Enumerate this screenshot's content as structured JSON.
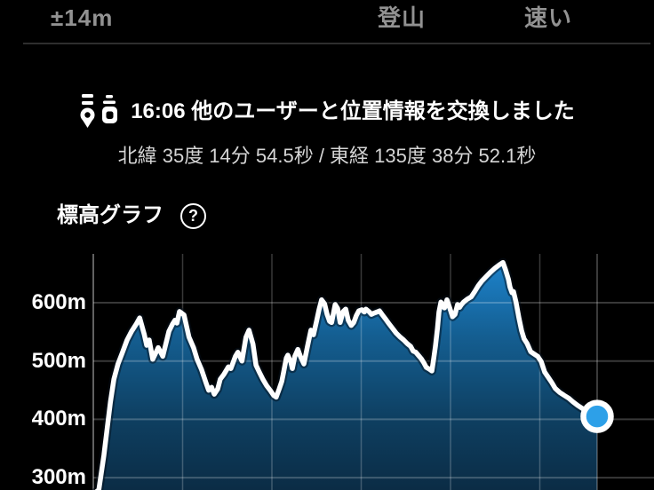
{
  "topbar": {
    "accuracy": "±14m",
    "mode": "登山",
    "pace": "速い"
  },
  "notification": {
    "message": "16:06 他のユーザーと位置情報を交換しました",
    "coordinates": "北緯 35度 14分 54.5秒 / 東経 135度 38分 52.1秒"
  },
  "section": {
    "title": "標高グラフ",
    "help_glyph": "?"
  },
  "chart_data": {
    "type": "area",
    "title": "標高グラフ",
    "ylabel": "標高",
    "unit": "m",
    "grid": true,
    "legend": "none",
    "y_ticks": [
      {
        "label": "600m",
        "value": 600
      },
      {
        "label": "500m",
        "value": 500
      },
      {
        "label": "400m",
        "value": 400
      },
      {
        "label": "300m",
        "value": 300
      }
    ],
    "visible_range_m": [
      272,
      669
    ],
    "current_elevation_m": 405,
    "colors": {
      "line": "#ffffff",
      "fill_top": "#1e87d2",
      "fill_mid": "#145e91",
      "fill_low": "#0e3f61",
      "fill_bottom": "#0b2c45",
      "dot": "#2da0e8",
      "grid": "rgba(255,255,255,0.22)",
      "axis": "rgba(255,255,255,0.38)"
    },
    "points": [
      [
        0,
        272
      ],
      [
        0.011,
        279
      ],
      [
        0.021,
        338
      ],
      [
        0.028,
        388
      ],
      [
        0.034,
        430
      ],
      [
        0.041,
        469
      ],
      [
        0.049,
        495
      ],
      [
        0.058,
        515
      ],
      [
        0.067,
        536
      ],
      [
        0.076,
        551
      ],
      [
        0.085,
        563
      ],
      [
        0.092,
        574
      ],
      [
        0.101,
        546
      ],
      [
        0.106,
        527
      ],
      [
        0.111,
        536
      ],
      [
        0.118,
        503
      ],
      [
        0.123,
        512
      ],
      [
        0.129,
        523
      ],
      [
        0.138,
        508
      ],
      [
        0.15,
        551
      ],
      [
        0.157,
        563
      ],
      [
        0.162,
        570
      ],
      [
        0.166,
        565
      ],
      [
        0.171,
        585
      ],
      [
        0.18,
        579
      ],
      [
        0.19,
        541
      ],
      [
        0.199,
        523
      ],
      [
        0.206,
        503
      ],
      [
        0.215,
        485
      ],
      [
        0.224,
        462
      ],
      [
        0.229,
        450
      ],
      [
        0.235,
        455
      ],
      [
        0.24,
        443
      ],
      [
        0.247,
        452
      ],
      [
        0.252,
        469
      ],
      [
        0.259,
        477
      ],
      [
        0.268,
        490
      ],
      [
        0.273,
        487
      ],
      [
        0.282,
        508
      ],
      [
        0.287,
        515
      ],
      [
        0.295,
        500
      ],
      [
        0.303,
        541
      ],
      [
        0.309,
        553
      ],
      [
        0.317,
        529
      ],
      [
        0.323,
        493
      ],
      [
        0.33,
        480
      ],
      [
        0.337,
        468
      ],
      [
        0.344,
        458
      ],
      [
        0.351,
        450
      ],
      [
        0.358,
        441
      ],
      [
        0.363,
        438
      ],
      [
        0.369,
        452
      ],
      [
        0.374,
        465
      ],
      [
        0.377,
        478
      ],
      [
        0.383,
        505
      ],
      [
        0.386,
        510
      ],
      [
        0.392,
        498
      ],
      [
        0.395,
        487
      ],
      [
        0.4,
        508
      ],
      [
        0.406,
        520
      ],
      [
        0.411,
        508
      ],
      [
        0.418,
        495
      ],
      [
        0.425,
        525
      ],
      [
        0.432,
        553
      ],
      [
        0.437,
        545
      ],
      [
        0.443,
        568
      ],
      [
        0.448,
        588
      ],
      [
        0.453,
        605
      ],
      [
        0.459,
        598
      ],
      [
        0.464,
        580
      ],
      [
        0.469,
        568
      ],
      [
        0.473,
        566
      ],
      [
        0.48,
        597
      ],
      [
        0.485,
        590
      ],
      [
        0.49,
        566
      ],
      [
        0.496,
        585
      ],
      [
        0.501,
        589
      ],
      [
        0.506,
        570
      ],
      [
        0.512,
        561
      ],
      [
        0.517,
        566
      ],
      [
        0.522,
        578
      ],
      [
        0.527,
        586
      ],
      [
        0.533,
        588
      ],
      [
        0.538,
        584
      ],
      [
        0.541,
        589
      ],
      [
        0.547,
        585
      ],
      [
        0.552,
        580
      ],
      [
        0.557,
        582
      ],
      [
        0.563,
        584
      ],
      [
        0.568,
        586
      ],
      [
        0.573,
        580
      ],
      [
        0.58,
        572
      ],
      [
        0.587,
        564
      ],
      [
        0.594,
        556
      ],
      [
        0.601,
        548
      ],
      [
        0.608,
        542
      ],
      [
        0.616,
        536
      ],
      [
        0.623,
        530
      ],
      [
        0.63,
        525
      ],
      [
        0.635,
        517
      ],
      [
        0.64,
        515
      ],
      [
        0.646,
        509
      ],
      [
        0.651,
        504
      ],
      [
        0.656,
        497
      ],
      [
        0.661,
        489
      ],
      [
        0.667,
        486
      ],
      [
        0.672,
        483
      ],
      [
        0.675,
        500
      ],
      [
        0.679,
        525
      ],
      [
        0.683,
        556
      ],
      [
        0.686,
        584
      ],
      [
        0.69,
        601
      ],
      [
        0.693,
        596
      ],
      [
        0.697,
        591
      ],
      [
        0.702,
        605
      ],
      [
        0.707,
        592
      ],
      [
        0.713,
        576
      ],
      [
        0.718,
        580
      ],
      [
        0.723,
        597
      ],
      [
        0.727,
        592
      ],
      [
        0.73,
        596
      ],
      [
        0.735,
        601
      ],
      [
        0.742,
        606
      ],
      [
        0.75,
        610
      ],
      [
        0.757,
        619
      ],
      [
        0.764,
        629
      ],
      [
        0.771,
        637
      ],
      [
        0.78,
        645
      ],
      [
        0.788,
        652
      ],
      [
        0.797,
        659
      ],
      [
        0.806,
        665
      ],
      [
        0.813,
        669
      ],
      [
        0.818,
        657
      ],
      [
        0.824,
        640
      ],
      [
        0.827,
        627
      ],
      [
        0.831,
        617
      ],
      [
        0.834,
        619
      ],
      [
        0.839,
        601
      ],
      [
        0.845,
        573
      ],
      [
        0.85,
        552
      ],
      [
        0.855,
        538
      ],
      [
        0.861,
        530
      ],
      [
        0.868,
        516
      ],
      [
        0.875,
        512
      ],
      [
        0.882,
        508
      ],
      [
        0.889,
        499
      ],
      [
        0.896,
        481
      ],
      [
        0.903,
        472
      ],
      [
        0.91,
        463
      ],
      [
        0.917,
        453
      ],
      [
        0.926,
        446
      ],
      [
        0.935,
        441
      ],
      [
        0.944,
        436
      ],
      [
        0.952,
        430
      ],
      [
        0.961,
        424
      ],
      [
        0.97,
        419
      ],
      [
        0.979,
        414
      ],
      [
        0.988,
        410
      ],
      [
        0.993,
        407
      ],
      [
        1,
        405
      ]
    ]
  }
}
